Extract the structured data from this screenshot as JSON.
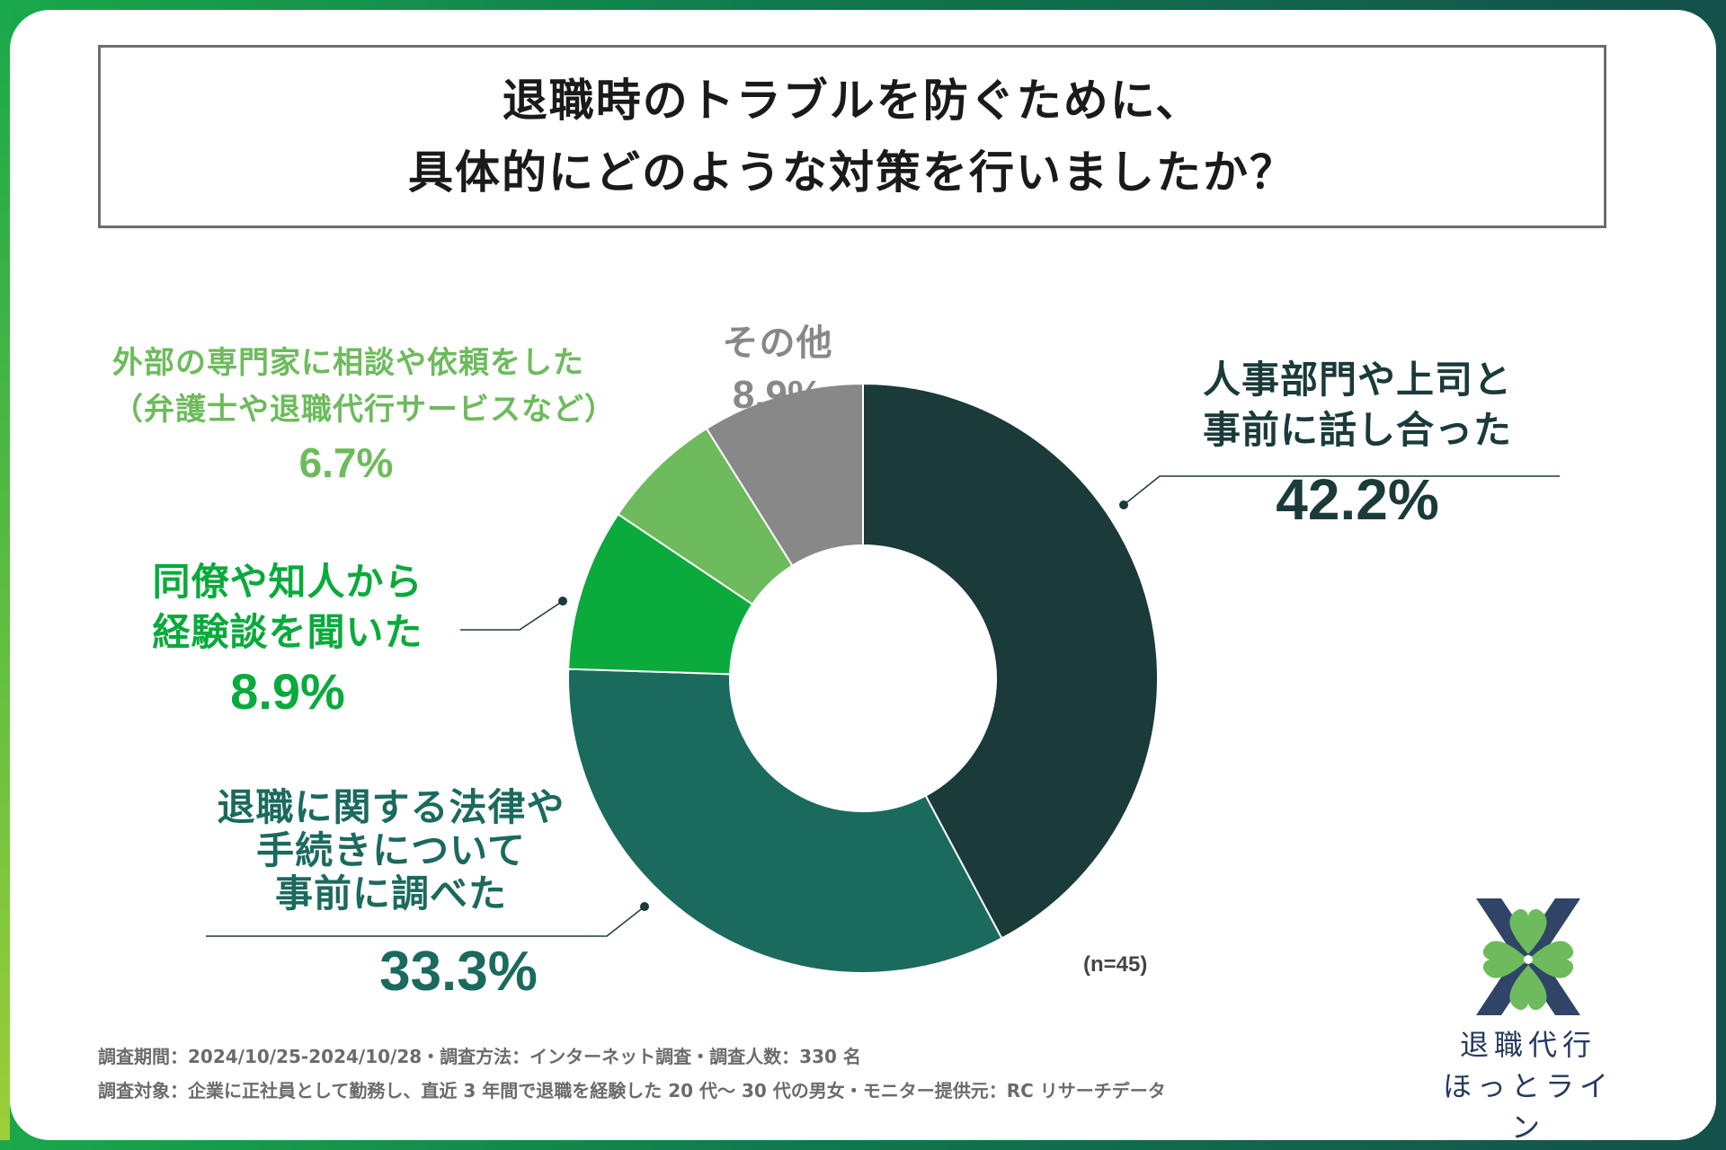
{
  "title": {
    "line1": "退職時のトラブルを防ぐために、",
    "line2": "具体的にどのような対策を行いましたか？"
  },
  "chart_data": {
    "type": "pie",
    "style": "donut",
    "n_label": "(n=45)",
    "slices": [
      {
        "lines": [
          "人事部門や上司と",
          "事前に話し合った"
        ],
        "value": 42.2,
        "label": "42.2%",
        "color": "#1b3a3a"
      },
      {
        "lines": [
          "退職に関する法律や",
          "手続きについて",
          "事前に調べた"
        ],
        "value": 33.3,
        "label": "33.3%",
        "color": "#1b6a5e"
      },
      {
        "lines": [
          "同僚や知人から",
          "経験談を聞いた"
        ],
        "value": 8.9,
        "label": "8.9%",
        "color": "#0aaa3c"
      },
      {
        "lines": [
          "外部の専門家に相談や依頼をした",
          "（弁護士や退職代行サービスなど）"
        ],
        "value": 6.7,
        "label": "6.7%",
        "color": "#6dbb5c"
      },
      {
        "lines": [
          "その他"
        ],
        "value": 8.9,
        "label": "8.9%",
        "color": "#888888"
      }
    ]
  },
  "footer": {
    "line1": "調査期間：2024/10/25-2024/10/28・調査方法：インターネット調査・調査人数：330 名",
    "line2": "調査対象：企業に正社員として勤務し、直近 3 年間で退職を経験した 20 代〜 30 代の男女・モニター提供元：RC リサーチデータ"
  },
  "brand": {
    "line1": "退職代行",
    "line2": "ほっとライン",
    "logo_color": "#6dbb5c",
    "logo_dark": "#243a5e"
  }
}
